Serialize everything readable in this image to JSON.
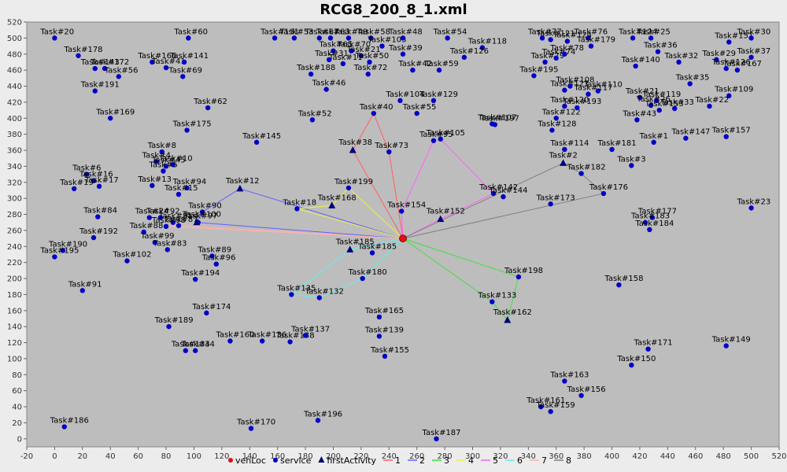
{
  "chart_data": {
    "type": "scatter",
    "title": "RCG8_200_8_1.xml",
    "xlim": [
      -20,
      520
    ],
    "ylim": [
      -10,
      520
    ],
    "x_ticks": [
      -20,
      0,
      20,
      40,
      60,
      80,
      100,
      120,
      140,
      160,
      180,
      200,
      220,
      240,
      260,
      280,
      300,
      320,
      340,
      360,
      380,
      400,
      420,
      440,
      460,
      480,
      500,
      520
    ],
    "y_ticks": [
      0,
      20,
      40,
      60,
      80,
      100,
      120,
      140,
      160,
      180,
      200,
      220,
      240,
      260,
      280,
      300,
      320,
      340,
      360,
      380,
      400,
      420,
      440,
      460,
      480,
      500,
      520
    ],
    "grid": false,
    "legend_position": "bottom",
    "colors": {
      "plot_bg": "#bdbdbd",
      "service": "#0000c8",
      "vehLoc": "#e01010",
      "first_activity": "#00007a"
    },
    "legend": [
      {
        "label": "vehLoc",
        "kind": "circle",
        "color": "#e01010"
      },
      {
        "label": "service",
        "kind": "circle",
        "color": "#0000c8"
      },
      {
        "label": "firstActivity",
        "kind": "triangle",
        "color": "#00007a"
      },
      {
        "label": "1",
        "kind": "line",
        "color": "#ff6060"
      },
      {
        "label": "2",
        "kind": "line",
        "color": "#6060ff"
      },
      {
        "label": "3",
        "kind": "line",
        "color": "#40e040"
      },
      {
        "label": "4",
        "kind": "line",
        "color": "#f0f040"
      },
      {
        "label": "5",
        "kind": "line",
        "color": "#ff60ff"
      },
      {
        "label": "6",
        "kind": "line",
        "color": "#60f0f0"
      },
      {
        "label": "7",
        "kind": "line",
        "color": "#ffb0b0"
      },
      {
        "label": "8",
        "kind": "line",
        "color": "#808080"
      }
    ],
    "vehLoc": {
      "x": 250,
      "y": 250
    },
    "services": [
      {
        "label": "Task#20",
        "x": 0,
        "y": 500
      },
      {
        "label": "Task#178",
        "x": 17,
        "y": 478
      },
      {
        "label": "Task#143",
        "x": 29,
        "y": 462
      },
      {
        "label": "Task#172",
        "x": 36,
        "y": 462
      },
      {
        "label": "Task#56",
        "x": 46,
        "y": 452
      },
      {
        "label": "Task#191",
        "x": 29,
        "y": 434
      },
      {
        "label": "Task#169",
        "x": 40,
        "y": 400
      },
      {
        "label": "Task#60",
        "x": 96,
        "y": 500
      },
      {
        "label": "Task#166",
        "x": 70,
        "y": 470
      },
      {
        "label": "Task#41",
        "x": 80,
        "y": 463
      },
      {
        "label": "Task#141",
        "x": 93,
        "y": 470
      },
      {
        "label": "Task#69",
        "x": 92,
        "y": 452
      },
      {
        "label": "Task#62",
        "x": 110,
        "y": 413
      },
      {
        "label": "Task#175",
        "x": 95,
        "y": 385
      },
      {
        "label": "Task#145",
        "x": 145,
        "y": 370
      },
      {
        "label": "Task#8",
        "x": 77,
        "y": 358
      },
      {
        "label": "Task#4",
        "x": 73,
        "y": 346
      },
      {
        "label": "Task#10",
        "x": 85,
        "y": 342
      },
      {
        "label": "Task#45",
        "x": 80,
        "y": 340
      },
      {
        "label": "Task#5",
        "x": 78,
        "y": 334
      },
      {
        "label": "Task#6",
        "x": 23,
        "y": 330
      },
      {
        "label": "Task#16",
        "x": 28,
        "y": 322
      },
      {
        "label": "Task#17",
        "x": 32,
        "y": 315
      },
      {
        "label": "Task#19",
        "x": 14,
        "y": 312
      },
      {
        "label": "Task#13",
        "x": 70,
        "y": 316
      },
      {
        "label": "Task#94",
        "x": 95,
        "y": 313
      },
      {
        "label": "Task#15",
        "x": 89,
        "y": 305
      },
      {
        "label": "Task#84",
        "x": 31,
        "y": 277
      },
      {
        "label": "Task#24",
        "x": 68,
        "y": 276
      },
      {
        "label": "Task#92",
        "x": 76,
        "y": 276
      },
      {
        "label": "Task#90",
        "x": 106,
        "y": 283
      },
      {
        "label": "Task#97",
        "x": 103,
        "y": 270
      },
      {
        "label": "Task#81",
        "x": 85,
        "y": 270
      },
      {
        "label": "Task#87",
        "x": 89,
        "y": 266
      },
      {
        "label": "Task#98",
        "x": 80,
        "y": 265
      },
      {
        "label": "Task#88",
        "x": 64,
        "y": 258
      },
      {
        "label": "Task#192",
        "x": 28,
        "y": 251
      },
      {
        "label": "Task#99",
        "x": 72,
        "y": 245
      },
      {
        "label": "Task#83",
        "x": 81,
        "y": 236
      },
      {
        "label": "Task#190",
        "x": 6,
        "y": 235
      },
      {
        "label": "Task#195",
        "x": 0,
        "y": 227
      },
      {
        "label": "Task#102",
        "x": 52,
        "y": 222
      },
      {
        "label": "Task#89",
        "x": 113,
        "y": 228
      },
      {
        "label": "Task#96",
        "x": 116,
        "y": 218
      },
      {
        "label": "Task#194",
        "x": 101,
        "y": 199
      },
      {
        "label": "Task#91",
        "x": 20,
        "y": 185
      },
      {
        "label": "Task#174",
        "x": 109,
        "y": 157
      },
      {
        "label": "Task#189",
        "x": 82,
        "y": 140
      },
      {
        "label": "Task#134",
        "x": 94,
        "y": 110
      },
      {
        "label": "Task#34",
        "x": 101,
        "y": 110
      },
      {
        "label": "Task#160",
        "x": 126,
        "y": 122
      },
      {
        "label": "Task#136",
        "x": 149,
        "y": 122
      },
      {
        "label": "Task#138",
        "x": 169,
        "y": 121
      },
      {
        "label": "Task#137",
        "x": 180,
        "y": 129
      },
      {
        "label": "Task#186",
        "x": 7,
        "y": 15
      },
      {
        "label": "Task#170",
        "x": 141,
        "y": 13
      },
      {
        "label": "Task#196",
        "x": 189,
        "y": 23
      },
      {
        "label": "Task#187",
        "x": 274,
        "y": 0
      },
      {
        "label": "Task#131",
        "x": 158,
        "y": 500
      },
      {
        "label": "Task#53",
        "x": 172,
        "y": 500
      },
      {
        "label": "Task#67",
        "x": 190,
        "y": 500
      },
      {
        "label": "Task#63",
        "x": 198,
        "y": 500
      },
      {
        "label": "Task#49",
        "x": 211,
        "y": 500
      },
      {
        "label": "Task#58",
        "x": 227,
        "y": 500
      },
      {
        "label": "Task#103",
        "x": 235,
        "y": 490
      },
      {
        "label": "Task#65",
        "x": 200,
        "y": 484
      },
      {
        "label": "Task#70",
        "x": 213,
        "y": 484
      },
      {
        "label": "Task#21",
        "x": 220,
        "y": 478
      },
      {
        "label": "Task#50",
        "x": 226,
        "y": 470
      },
      {
        "label": "Task#31",
        "x": 197,
        "y": 473
      },
      {
        "label": "Task#11",
        "x": 207,
        "y": 468
      },
      {
        "label": "Task#188",
        "x": 184,
        "y": 455
      },
      {
        "label": "Task#72",
        "x": 225,
        "y": 455
      },
      {
        "label": "Task#46",
        "x": 195,
        "y": 436
      },
      {
        "label": "Task#48",
        "x": 250,
        "y": 500
      },
      {
        "label": "Task#54",
        "x": 282,
        "y": 500
      },
      {
        "label": "Task#118",
        "x": 307,
        "y": 488
      },
      {
        "label": "Task#39",
        "x": 250,
        "y": 480
      },
      {
        "label": "Task#126",
        "x": 294,
        "y": 476
      },
      {
        "label": "Task#42",
        "x": 257,
        "y": 460
      },
      {
        "label": "Task#59",
        "x": 276,
        "y": 460
      },
      {
        "label": "Task#104",
        "x": 248,
        "y": 422
      },
      {
        "label": "Task#129",
        "x": 272,
        "y": 422
      },
      {
        "label": "Task#55",
        "x": 260,
        "y": 406
      },
      {
        "label": "Task#40",
        "x": 229,
        "y": 406
      },
      {
        "label": "Task#52",
        "x": 185,
        "y": 398
      },
      {
        "label": "Task#107",
        "x": 314,
        "y": 393
      },
      {
        "label": "Task#197",
        "x": 316,
        "y": 392
      },
      {
        "label": "Task#105",
        "x": 277,
        "y": 374
      },
      {
        "label": "Task#95",
        "x": 272,
        "y": 372
      },
      {
        "label": "Task#73",
        "x": 240,
        "y": 358
      },
      {
        "label": "Task#199",
        "x": 211,
        "y": 313
      },
      {
        "label": "Task#18",
        "x": 174,
        "y": 287
      },
      {
        "label": "Task#154",
        "x": 249,
        "y": 284
      },
      {
        "label": "Task#142",
        "x": 315,
        "y": 306
      },
      {
        "label": "Task#144",
        "x": 322,
        "y": 302
      },
      {
        "label": "Task#185",
        "x": 228,
        "y": 232
      },
      {
        "label": "Task#180",
        "x": 221,
        "y": 200
      },
      {
        "label": "Task#135",
        "x": 170,
        "y": 180
      },
      {
        "label": "Task#132",
        "x": 190,
        "y": 176
      },
      {
        "label": "Task#165",
        "x": 233,
        "y": 152
      },
      {
        "label": "Task#139",
        "x": 233,
        "y": 128
      },
      {
        "label": "Task#155",
        "x": 237,
        "y": 103
      },
      {
        "label": "Task#198",
        "x": 333,
        "y": 202
      },
      {
        "label": "Task#133",
        "x": 314,
        "y": 171
      },
      {
        "label": "Task#173",
        "x": 356,
        "y": 293
      },
      {
        "label": "Task#176",
        "x": 394,
        "y": 306
      },
      {
        "label": "Task#182",
        "x": 378,
        "y": 331
      },
      {
        "label": "Task#114",
        "x": 366,
        "y": 361
      },
      {
        "label": "Task#128",
        "x": 357,
        "y": 385
      },
      {
        "label": "Task#122",
        "x": 360,
        "y": 400
      },
      {
        "label": "Task#181",
        "x": 400,
        "y": 361
      },
      {
        "label": "Task#3",
        "x": 414,
        "y": 341
      },
      {
        "label": "Task#1",
        "x": 430,
        "y": 370
      },
      {
        "label": "Task#147",
        "x": 453,
        "y": 375
      },
      {
        "label": "Task#157",
        "x": 482,
        "y": 377
      },
      {
        "label": "Task#23",
        "x": 500,
        "y": 288
      },
      {
        "label": "Task#177",
        "x": 429,
        "y": 276
      },
      {
        "label": "Task#183",
        "x": 424,
        "y": 270
      },
      {
        "label": "Task#184",
        "x": 427,
        "y": 261
      },
      {
        "label": "Task#158",
        "x": 405,
        "y": 192
      },
      {
        "label": "Task#171",
        "x": 426,
        "y": 112
      },
      {
        "label": "Task#150",
        "x": 414,
        "y": 92
      },
      {
        "label": "Task#149",
        "x": 482,
        "y": 116
      },
      {
        "label": "Task#163",
        "x": 366,
        "y": 72
      },
      {
        "label": "Task#156",
        "x": 378,
        "y": 54
      },
      {
        "label": "Task#161",
        "x": 349,
        "y": 40
      },
      {
        "label": "Task#159",
        "x": 356,
        "y": 34
      },
      {
        "label": "Task#193",
        "x": 375,
        "y": 413
      },
      {
        "label": "Task#120",
        "x": 366,
        "y": 415
      },
      {
        "label": "Task#110",
        "x": 390,
        "y": 434
      },
      {
        "label": "Task#127",
        "x": 366,
        "y": 435
      },
      {
        "label": "Task#108",
        "x": 370,
        "y": 440
      },
      {
        "label": "Task#195",
        "x": 344,
        "y": 453
      },
      {
        "label": "Task#117",
        "x": 383,
        "y": 430
      },
      {
        "label": "Task#79",
        "x": 352,
        "y": 470
      },
      {
        "label": "Task#74",
        "x": 360,
        "y": 475
      },
      {
        "label": "Task#78",
        "x": 366,
        "y": 480
      },
      {
        "label": "Task#77",
        "x": 350,
        "y": 500
      },
      {
        "label": "Task#121",
        "x": 356,
        "y": 498
      },
      {
        "label": "Task#124",
        "x": 368,
        "y": 496
      },
      {
        "label": "Task#76",
        "x": 383,
        "y": 500
      },
      {
        "label": "Task#179",
        "x": 385,
        "y": 490
      },
      {
        "label": "Task#124",
        "x": 415,
        "y": 500
      },
      {
        "label": "Task#25",
        "x": 428,
        "y": 500
      },
      {
        "label": "Task#36",
        "x": 433,
        "y": 483
      },
      {
        "label": "Task#140",
        "x": 417,
        "y": 465
      },
      {
        "label": "Task#32",
        "x": 448,
        "y": 470
      },
      {
        "label": "Task#29",
        "x": 475,
        "y": 473
      },
      {
        "label": "Task#151",
        "x": 484,
        "y": 495
      },
      {
        "label": "Task#30",
        "x": 500,
        "y": 500
      },
      {
        "label": "Task#37",
        "x": 500,
        "y": 476
      },
      {
        "label": "Task#167",
        "x": 490,
        "y": 460
      },
      {
        "label": "Task#126",
        "x": 482,
        "y": 462
      },
      {
        "label": "Task#35",
        "x": 456,
        "y": 443
      },
      {
        "label": "Task#109",
        "x": 484,
        "y": 428
      },
      {
        "label": "Task#22",
        "x": 470,
        "y": 415
      },
      {
        "label": "Task#119",
        "x": 432,
        "y": 422
      },
      {
        "label": "Task#21",
        "x": 420,
        "y": 426
      },
      {
        "label": "Task#26",
        "x": 428,
        "y": 416
      },
      {
        "label": "Task#33",
        "x": 445,
        "y": 412
      },
      {
        "label": "Task#153",
        "x": 434,
        "y": 410
      },
      {
        "label": "Task#43",
        "x": 418,
        "y": 398
      }
    ],
    "first_activities": [
      {
        "label": "Task#38",
        "x": 214,
        "y": 360
      },
      {
        "label": "Task#12",
        "x": 133,
        "y": 312
      },
      {
        "label": "Task#168",
        "x": 199,
        "y": 291
      },
      {
        "label": "Task#2",
        "x": 365,
        "y": 344
      },
      {
        "label": "Task#152",
        "x": 277,
        "y": 274
      },
      {
        "label": "Task#100",
        "x": 102,
        "y": 270
      },
      {
        "label": "Task#185",
        "x": 212,
        "y": 236
      },
      {
        "label": "Task#162",
        "x": 325,
        "y": 148
      }
    ],
    "routes": [
      {
        "name": "1",
        "color": "#ff6060",
        "points": [
          [
            250,
            250
          ],
          [
            214,
            360
          ],
          [
            229,
            406
          ],
          [
            240,
            358
          ],
          [
            250,
            250
          ]
        ]
      },
      {
        "name": "2",
        "color": "#6060ff",
        "points": [
          [
            250,
            250
          ],
          [
            133,
            312
          ],
          [
            106,
            283
          ],
          [
            102,
            270
          ],
          [
            250,
            250
          ]
        ]
      },
      {
        "name": "3",
        "color": "#40e040",
        "points": [
          [
            250,
            250
          ],
          [
            333,
            202
          ],
          [
            325,
            148
          ],
          [
            314,
            171
          ],
          [
            250,
            250
          ]
        ]
      },
      {
        "name": "4",
        "color": "#f0f040",
        "points": [
          [
            250,
            250
          ],
          [
            211,
            313
          ],
          [
            199,
            291
          ],
          [
            174,
            287
          ],
          [
            250,
            250
          ]
        ]
      },
      {
        "name": "5",
        "color": "#ff60ff",
        "points": [
          [
            250,
            250
          ],
          [
            277,
            274
          ],
          [
            315,
            306
          ],
          [
            277,
            374
          ],
          [
            272,
            372
          ],
          [
            249,
            284
          ],
          [
            250,
            250
          ]
        ]
      },
      {
        "name": "6",
        "color": "#60f0f0",
        "points": [
          [
            250,
            250
          ],
          [
            212,
            236
          ],
          [
            170,
            180
          ],
          [
            190,
            176
          ],
          [
            221,
            200
          ],
          [
            250,
            250
          ]
        ]
      },
      {
        "name": "7",
        "color": "#ffb0b0",
        "points": [
          [
            250,
            250
          ],
          [
            89,
            266
          ],
          [
            80,
            265
          ],
          [
            250,
            250
          ]
        ]
      },
      {
        "name": "8",
        "color": "#808080",
        "points": [
          [
            250,
            250
          ],
          [
            365,
            344
          ],
          [
            378,
            331
          ],
          [
            394,
            306
          ],
          [
            250,
            250
          ]
        ]
      }
    ]
  }
}
